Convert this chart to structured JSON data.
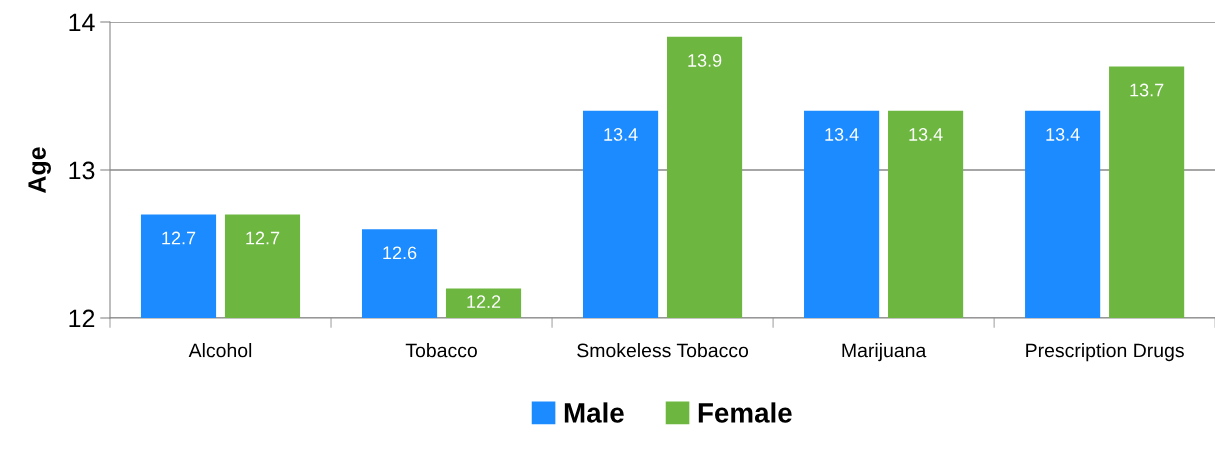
{
  "chart_data": {
    "type": "bar",
    "ylabel": "Age",
    "categories": [
      "Alcohol",
      "Tobacco",
      "Smokeless Tobacco",
      "Marijuana",
      "Prescription Drugs"
    ],
    "series": [
      {
        "name": "Male",
        "color": "#1b8bff",
        "values": [
          12.7,
          12.6,
          13.4,
          13.4,
          13.4
        ]
      },
      {
        "name": "Female",
        "color": "#6db741",
        "values": [
          12.7,
          12.2,
          13.9,
          13.4,
          13.7
        ]
      }
    ],
    "ylim": [
      12,
      14
    ],
    "yticks": [
      12,
      13,
      14
    ],
    "grid": "y",
    "legend": "bottom",
    "data_labels": true
  }
}
